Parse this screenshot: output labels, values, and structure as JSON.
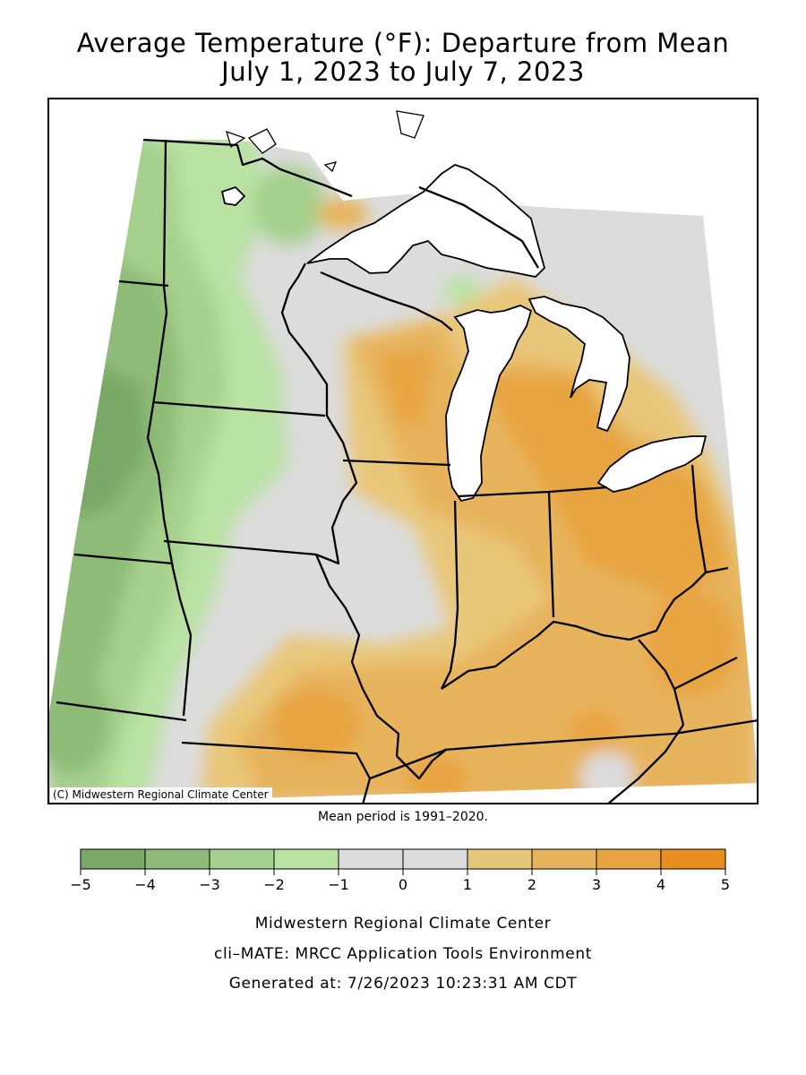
{
  "title_line1": "Average Temperature (°F): Departure from Mean",
  "title_line2": "July 1, 2023 to July 7, 2023",
  "credit": "(C) Midwestern Regional Climate Center",
  "mean_period": "Mean period is 1991–2020.",
  "legend": {
    "ticks": [
      "−5",
      "−4",
      "−3",
      "−2",
      "−1",
      "0",
      "1",
      "2",
      "3",
      "4",
      "5"
    ],
    "colors": [
      "#7aa866",
      "#8fbb78",
      "#a6d08d",
      "#b9e2a3",
      "#dcdcdc",
      "#dcdcdc",
      "#e9c77a",
      "#e7b45d",
      "#e8a440",
      "#e98e20"
    ]
  },
  "footer": {
    "line1": "Midwestern Regional Climate Center",
    "line2": "cli–MATE: MRCC Application Tools Environment",
    "line3": "Generated at: 7/26/2023 10:23:31 AM CDT"
  },
  "colors": {
    "land_gray": "#dcdcdc",
    "water": "#ffffff",
    "border": "#000000"
  }
}
